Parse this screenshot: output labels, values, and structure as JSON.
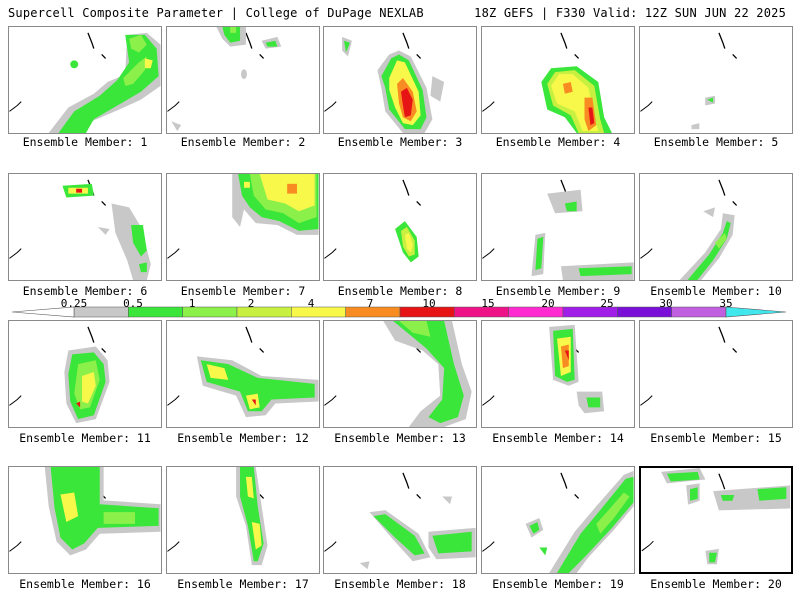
{
  "header": {
    "title": "Supercell Composite Parameter | College of DuPage NEXLAB",
    "run_info": "18Z GEFS | F330 Valid: 12Z SUN JUN 22 2025"
  },
  "panels": [
    {
      "caption": "Ensemble Member: 1"
    },
    {
      "caption": "Ensemble Member: 2"
    },
    {
      "caption": "Ensemble Member: 3"
    },
    {
      "caption": "Ensemble Member: 4"
    },
    {
      "caption": "Ensemble Member: 5"
    },
    {
      "caption": "Ensemble Member: 6"
    },
    {
      "caption": "Ensemble Member: 7"
    },
    {
      "caption": "Ensemble Member: 8"
    },
    {
      "caption": "Ensemble Member: 9"
    },
    {
      "caption": "Ensemble Member: 10"
    },
    {
      "caption": "Ensemble Member: 11"
    },
    {
      "caption": "Ensemble Member: 12"
    },
    {
      "caption": "Ensemble Member: 13"
    },
    {
      "caption": "Ensemble Member: 14"
    },
    {
      "caption": "Ensemble Member: 15"
    },
    {
      "caption": "Ensemble Member: 16"
    },
    {
      "caption": "Ensemble Member: 17"
    },
    {
      "caption": "Ensemble Member: 18"
    },
    {
      "caption": "Ensemble Member: 19"
    },
    {
      "caption": "Ensemble Member: 20"
    }
  ],
  "colorbar": {
    "ticks": [
      "0.25",
      "0.5",
      "1",
      "2",
      "4",
      "7",
      "10",
      "15",
      "20",
      "25",
      "30",
      "35"
    ],
    "colors": [
      "#ffffff",
      "#c8c8c8",
      "#39e639",
      "#8cf04a",
      "#c8f040",
      "#f8f84a",
      "#f88c22",
      "#e61414",
      "#ee1488",
      "#ff2ad0",
      "#a01ee8",
      "#7a10d8",
      "#c060e0",
      "#40e8ee"
    ]
  },
  "colors": {
    "grey": "#c8c8c8",
    "green": "#39e639",
    "lime": "#8cf04a",
    "yellow": "#f8f84a",
    "orange": "#f88c22",
    "red": "#e61414"
  }
}
